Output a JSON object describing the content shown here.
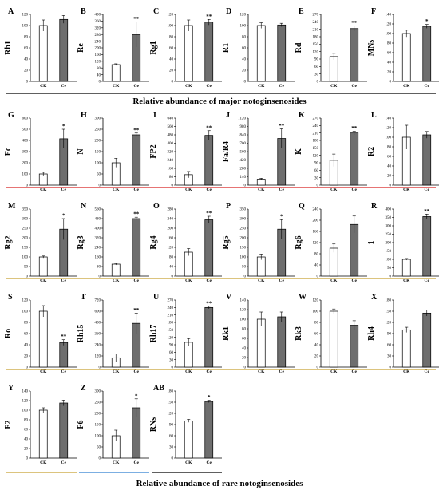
{
  "colors": {
    "bar_ck": "#ffffff",
    "bar_ce": "#6e6e6e",
    "axis": "#000000",
    "line_black": "#000000",
    "line_red": "#d62020",
    "line_gold": "#c8a032",
    "line_blue": "#2f7fd0"
  },
  "section_titles": {
    "major": "Relative abundance of major notoginsenosides",
    "rare": "Relative abundance of  rare notoginsenosides"
  },
  "chart_data": [
    {
      "type": "bar",
      "panel": "A",
      "ylabel": "Rb1",
      "categories": [
        "CK",
        "Ce"
      ],
      "values": [
        100,
        111
      ],
      "errors": [
        10,
        7
      ],
      "ylim": [
        0,
        120
      ],
      "yticks": [
        0,
        20,
        40,
        60,
        80,
        100,
        120
      ],
      "significance": ""
    },
    {
      "type": "bar",
      "panel": "B",
      "ylabel": "Re",
      "categories": [
        "CK",
        "Ce"
      ],
      "values": [
        100,
        280
      ],
      "errors": [
        5,
        75
      ],
      "ylim": [
        0,
        400
      ],
      "yticks": [
        0,
        40,
        80,
        120,
        160,
        200,
        240,
        280,
        320,
        360,
        400
      ],
      "significance": "**"
    },
    {
      "type": "bar",
      "panel": "C",
      "ylabel": "Rg1",
      "categories": [
        "CK",
        "Ce"
      ],
      "values": [
        100,
        106
      ],
      "errors": [
        10,
        5
      ],
      "ylim": [
        0,
        120
      ],
      "yticks": [
        0,
        20,
        40,
        60,
        80,
        100,
        120
      ],
      "significance": "**"
    },
    {
      "type": "bar",
      "panel": "D",
      "ylabel": "R1",
      "categories": [
        "CK",
        "Ce"
      ],
      "values": [
        100,
        101
      ],
      "errors": [
        5,
        3
      ],
      "ylim": [
        0,
        120
      ],
      "yticks": [
        0,
        20,
        40,
        60,
        80,
        100,
        120
      ],
      "significance": ""
    },
    {
      "type": "bar",
      "panel": "E",
      "ylabel": "Rd",
      "categories": [
        "CK",
        "Ce"
      ],
      "values": [
        100,
        213
      ],
      "errors": [
        13,
        10
      ],
      "ylim": [
        0,
        270
      ],
      "yticks": [
        0,
        30,
        60,
        90,
        120,
        150,
        180,
        210,
        240,
        270
      ],
      "significance": "**"
    },
    {
      "type": "bar",
      "panel": "F",
      "ylabel": "MNs",
      "categories": [
        "CK",
        "Ce"
      ],
      "values": [
        100,
        115
      ],
      "errors": [
        7,
        4
      ],
      "ylim": [
        0,
        140
      ],
      "yticks": [
        0,
        20,
        40,
        60,
        80,
        100,
        120,
        140
      ],
      "significance": "*"
    },
    {
      "type": "bar",
      "panel": "G",
      "ylabel": "Fc",
      "categories": [
        "CK",
        "Ce"
      ],
      "values": [
        100,
        415
      ],
      "errors": [
        15,
        85
      ],
      "ylim": [
        0,
        600
      ],
      "yticks": [
        0,
        100,
        200,
        300,
        400,
        500,
        600
      ],
      "significance": "*"
    },
    {
      "type": "bar",
      "panel": "H",
      "ylabel": "N",
      "categories": [
        "CK",
        "Ce"
      ],
      "values": [
        100,
        225
      ],
      "errors": [
        20,
        8
      ],
      "ylim": [
        0,
        300
      ],
      "yticks": [
        0,
        50,
        100,
        150,
        200,
        250,
        300
      ],
      "significance": "**"
    },
    {
      "type": "bar",
      "panel": "I",
      "ylabel": "FP2",
      "categories": [
        "CK",
        "Ce"
      ],
      "values": [
        100,
        475
      ],
      "errors": [
        30,
        45
      ],
      "ylim": [
        0,
        640
      ],
      "yticks": [
        0,
        80,
        160,
        240,
        320,
        400,
        480,
        560,
        640
      ],
      "significance": "**"
    },
    {
      "type": "bar",
      "panel": "J",
      "ylabel": "Fa/R4",
      "categories": [
        "CK",
        "Ce"
      ],
      "values": [
        100,
        780
      ],
      "errors": [
        15,
        160
      ],
      "ylim": [
        0,
        1120
      ],
      "yticks": [
        0,
        140,
        280,
        420,
        560,
        700,
        840,
        980,
        1120
      ],
      "significance": "**"
    },
    {
      "type": "bar",
      "panel": "K",
      "ylabel": "K",
      "categories": [
        "CK",
        "Ce"
      ],
      "values": [
        100,
        210
      ],
      "errors": [
        25,
        7
      ],
      "ylim": [
        0,
        270
      ],
      "yticks": [
        0,
        30,
        60,
        90,
        120,
        150,
        180,
        210,
        240,
        270
      ],
      "significance": "**"
    },
    {
      "type": "bar",
      "panel": "L",
      "ylabel": "R2",
      "categories": [
        "CK",
        "Ce"
      ],
      "values": [
        100,
        105
      ],
      "errors": [
        25,
        7
      ],
      "ylim": [
        0,
        140
      ],
      "yticks": [
        0,
        20,
        40,
        60,
        80,
        100,
        120,
        140
      ],
      "significance": ""
    },
    {
      "type": "bar",
      "panel": "M",
      "ylabel": "Rg2",
      "categories": [
        "CK",
        "Ce"
      ],
      "values": [
        100,
        245
      ],
      "errors": [
        5,
        55
      ],
      "ylim": [
        0,
        350
      ],
      "yticks": [
        0,
        50,
        100,
        150,
        200,
        250,
        300,
        350
      ],
      "significance": "*"
    },
    {
      "type": "bar",
      "panel": "N",
      "ylabel": "Rg3",
      "categories": [
        "CK",
        "Ce"
      ],
      "values": [
        100,
        480
      ],
      "errors": [
        7,
        12
      ],
      "ylim": [
        0,
        560
      ],
      "yticks": [
        0,
        80,
        160,
        240,
        320,
        400,
        480,
        560
      ],
      "significance": "**"
    },
    {
      "type": "bar",
      "panel": "O",
      "ylabel": "Rg4",
      "categories": [
        "CK",
        "Ce"
      ],
      "values": [
        100,
        235
      ],
      "errors": [
        15,
        15
      ],
      "ylim": [
        0,
        280
      ],
      "yticks": [
        0,
        40,
        80,
        120,
        160,
        200,
        240,
        280
      ],
      "significance": "**"
    },
    {
      "type": "bar",
      "panel": "P",
      "ylabel": "Rg5",
      "categories": [
        "CK",
        "Ce"
      ],
      "values": [
        100,
        245
      ],
      "errors": [
        15,
        50
      ],
      "ylim": [
        0,
        350
      ],
      "yticks": [
        0,
        50,
        100,
        150,
        200,
        250,
        300,
        350
      ],
      "significance": "*"
    },
    {
      "type": "bar",
      "panel": "Q",
      "ylabel": "Rg6",
      "categories": [
        "CK",
        "Ce"
      ],
      "values": [
        100,
        185
      ],
      "errors": [
        15,
        30
      ],
      "ylim": [
        0,
        240
      ],
      "yticks": [
        0,
        40,
        80,
        120,
        160,
        200,
        240
      ],
      "significance": ""
    },
    {
      "type": "bar",
      "panel": "R",
      "ylabel": "1",
      "categories": [
        "CK",
        "Ce"
      ],
      "values": [
        100,
        355
      ],
      "errors": [
        5,
        15
      ],
      "ylim": [
        0,
        400
      ],
      "yticks": [
        0,
        50,
        100,
        150,
        200,
        250,
        300,
        350,
        400
      ],
      "significance": "**"
    },
    {
      "type": "bar",
      "panel": "S",
      "ylabel": "Ro",
      "categories": [
        "CK",
        "Ce"
      ],
      "values": [
        100,
        44
      ],
      "errors": [
        10,
        5
      ],
      "ylim": [
        0,
        120
      ],
      "yticks": [
        0,
        20,
        40,
        60,
        80,
        100,
        120
      ],
      "significance": "**"
    },
    {
      "type": "bar",
      "panel": "T",
      "ylabel": "Rh15",
      "categories": [
        "CK",
        "Ce"
      ],
      "values": [
        100,
        470
      ],
      "errors": [
        40,
        110
      ],
      "ylim": [
        0,
        720
      ],
      "yticks": [
        0,
        120,
        240,
        360,
        480,
        600,
        720
      ],
      "significance": "**"
    },
    {
      "type": "bar",
      "panel": "U",
      "ylabel": "Rh17",
      "categories": [
        "CK",
        "Ce"
      ],
      "values": [
        100,
        240
      ],
      "errors": [
        15,
        5
      ],
      "ylim": [
        0,
        270
      ],
      "yticks": [
        0,
        30,
        60,
        90,
        120,
        150,
        180,
        210,
        240,
        270
      ],
      "significance": "**"
    },
    {
      "type": "bar",
      "panel": "V",
      "ylabel": "Rk1",
      "categories": [
        "CK",
        "Ce"
      ],
      "values": [
        100,
        105
      ],
      "errors": [
        15,
        10
      ],
      "ylim": [
        0,
        140
      ],
      "yticks": [
        0,
        20,
        40,
        60,
        80,
        100,
        120,
        140
      ],
      "significance": ""
    },
    {
      "type": "bar",
      "panel": "W",
      "ylabel": "Rk3",
      "categories": [
        "CK",
        "Ce"
      ],
      "values": [
        100,
        75
      ],
      "errors": [
        4,
        8
      ],
      "ylim": [
        0,
        120
      ],
      "yticks": [
        0,
        20,
        40,
        60,
        80,
        100,
        120
      ],
      "significance": ""
    },
    {
      "type": "bar",
      "panel": "X",
      "ylabel": "Rh4",
      "categories": [
        "CK",
        "Ce"
      ],
      "values": [
        100,
        145
      ],
      "errors": [
        7,
        8
      ],
      "ylim": [
        0,
        180
      ],
      "yticks": [
        0,
        30,
        60,
        90,
        120,
        150,
        180
      ],
      "significance": ""
    },
    {
      "type": "bar",
      "panel": "Y",
      "ylabel": "F2",
      "categories": [
        "CK",
        "Ce"
      ],
      "values": [
        100,
        115
      ],
      "errors": [
        5,
        6
      ],
      "ylim": [
        0,
        140
      ],
      "yticks": [
        0,
        20,
        40,
        60,
        80,
        100,
        120,
        140
      ],
      "significance": ""
    },
    {
      "type": "bar",
      "panel": "Z",
      "ylabel": "F6",
      "categories": [
        "CK",
        "Ce"
      ],
      "values": [
        100,
        225
      ],
      "errors": [
        25,
        40
      ],
      "ylim": [
        0,
        300
      ],
      "yticks": [
        0,
        50,
        100,
        150,
        200,
        250,
        300
      ],
      "significance": "*"
    },
    {
      "type": "bar",
      "panel": "AB",
      "ylabel": "RNs",
      "categories": [
        "CK",
        "Ce"
      ],
      "values": [
        100,
        152
      ],
      "errors": [
        4,
        3
      ],
      "ylim": [
        0,
        180
      ],
      "yticks": [
        0,
        30,
        60,
        90,
        120,
        150,
        180
      ],
      "significance": "*"
    }
  ]
}
